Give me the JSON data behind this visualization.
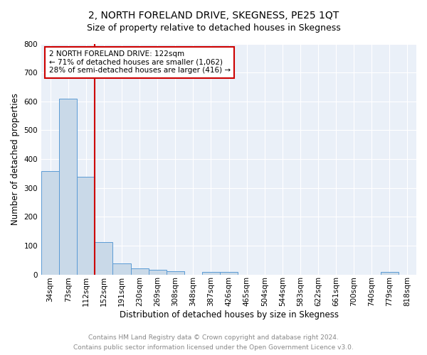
{
  "title": "2, NORTH FORELAND DRIVE, SKEGNESS, PE25 1QT",
  "subtitle": "Size of property relative to detached houses in Skegness",
  "xlabel": "Distribution of detached houses by size in Skegness",
  "ylabel": "Number of detached properties",
  "bins": [
    "34sqm",
    "73sqm",
    "112sqm",
    "152sqm",
    "191sqm",
    "230sqm",
    "269sqm",
    "308sqm",
    "348sqm",
    "387sqm",
    "426sqm",
    "465sqm",
    "504sqm",
    "544sqm",
    "583sqm",
    "622sqm",
    "661sqm",
    "700sqm",
    "740sqm",
    "779sqm",
    "818sqm"
  ],
  "values": [
    358,
    610,
    338,
    113,
    38,
    20,
    15,
    10,
    0,
    8,
    8,
    0,
    0,
    0,
    0,
    0,
    0,
    0,
    0,
    8,
    0
  ],
  "property_bin_index": 2,
  "annotation_title": "2 NORTH FORELAND DRIVE: 122sqm",
  "annotation_line1": "← 71% of detached houses are smaller (1,062)",
  "annotation_line2": "28% of semi-detached houses are larger (416) →",
  "bar_color": "#c9d9e8",
  "bar_edge_color": "#5b9bd5",
  "red_line_color": "#cc0000",
  "annotation_box_edge": "#cc0000",
  "footer_line1": "Contains HM Land Registry data © Crown copyright and database right 2024.",
  "footer_line2": "Contains public sector information licensed under the Open Government Licence v3.0.",
  "ylim": [
    0,
    800
  ],
  "yticks": [
    0,
    100,
    200,
    300,
    400,
    500,
    600,
    700,
    800
  ],
  "title_fontsize": 10,
  "subtitle_fontsize": 9,
  "xlabel_fontsize": 8.5,
  "ylabel_fontsize": 8.5,
  "tick_fontsize": 7.5,
  "annotation_fontsize": 7.5,
  "footer_fontsize": 6.5,
  "bg_color": "#eaf0f8",
  "fig_bg_color": "#ffffff"
}
